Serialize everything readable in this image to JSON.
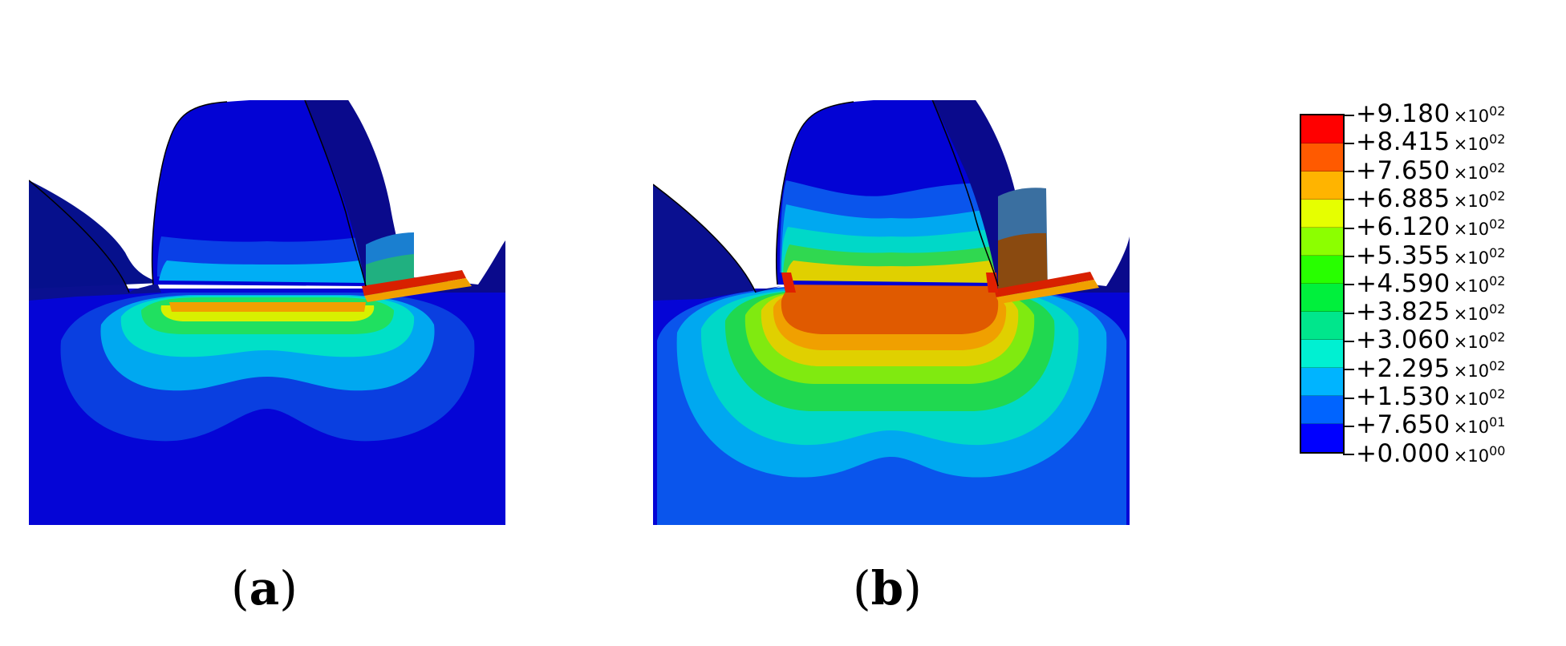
{
  "panels": [
    {
      "id": "a",
      "caption_open": "(",
      "caption_letter": "a",
      "caption_close": ")"
    },
    {
      "id": "b",
      "caption_open": "(",
      "caption_letter": "b",
      "caption_close": ")"
    }
  ],
  "legend": {
    "labels": [
      {
        "mantissa": "+9.180",
        "exponent": "02"
      },
      {
        "mantissa": "+8.415",
        "exponent": "02"
      },
      {
        "mantissa": "+7.650",
        "exponent": "02"
      },
      {
        "mantissa": "+6.885",
        "exponent": "02"
      },
      {
        "mantissa": "+6.120",
        "exponent": "02"
      },
      {
        "mantissa": "+5.355",
        "exponent": "02"
      },
      {
        "mantissa": "+4.590",
        "exponent": "02"
      },
      {
        "mantissa": "+3.825",
        "exponent": "02"
      },
      {
        "mantissa": "+3.060",
        "exponent": "02"
      },
      {
        "mantissa": "+2.295",
        "exponent": "02"
      },
      {
        "mantissa": "+1.530",
        "exponent": "02"
      },
      {
        "mantissa": "+7.650",
        "exponent": "01"
      },
      {
        "mantissa": "+0.000",
        "exponent": "00"
      }
    ],
    "colors": [
      "#ff0000",
      "#ff5a00",
      "#ffb400",
      "#e6ff00",
      "#8cff00",
      "#28ff00",
      "#00f03c",
      "#00e68c",
      "#00f0d2",
      "#00b4ff",
      "#0064ff",
      "#0000ff"
    ],
    "times_symbol": "×10"
  }
}
